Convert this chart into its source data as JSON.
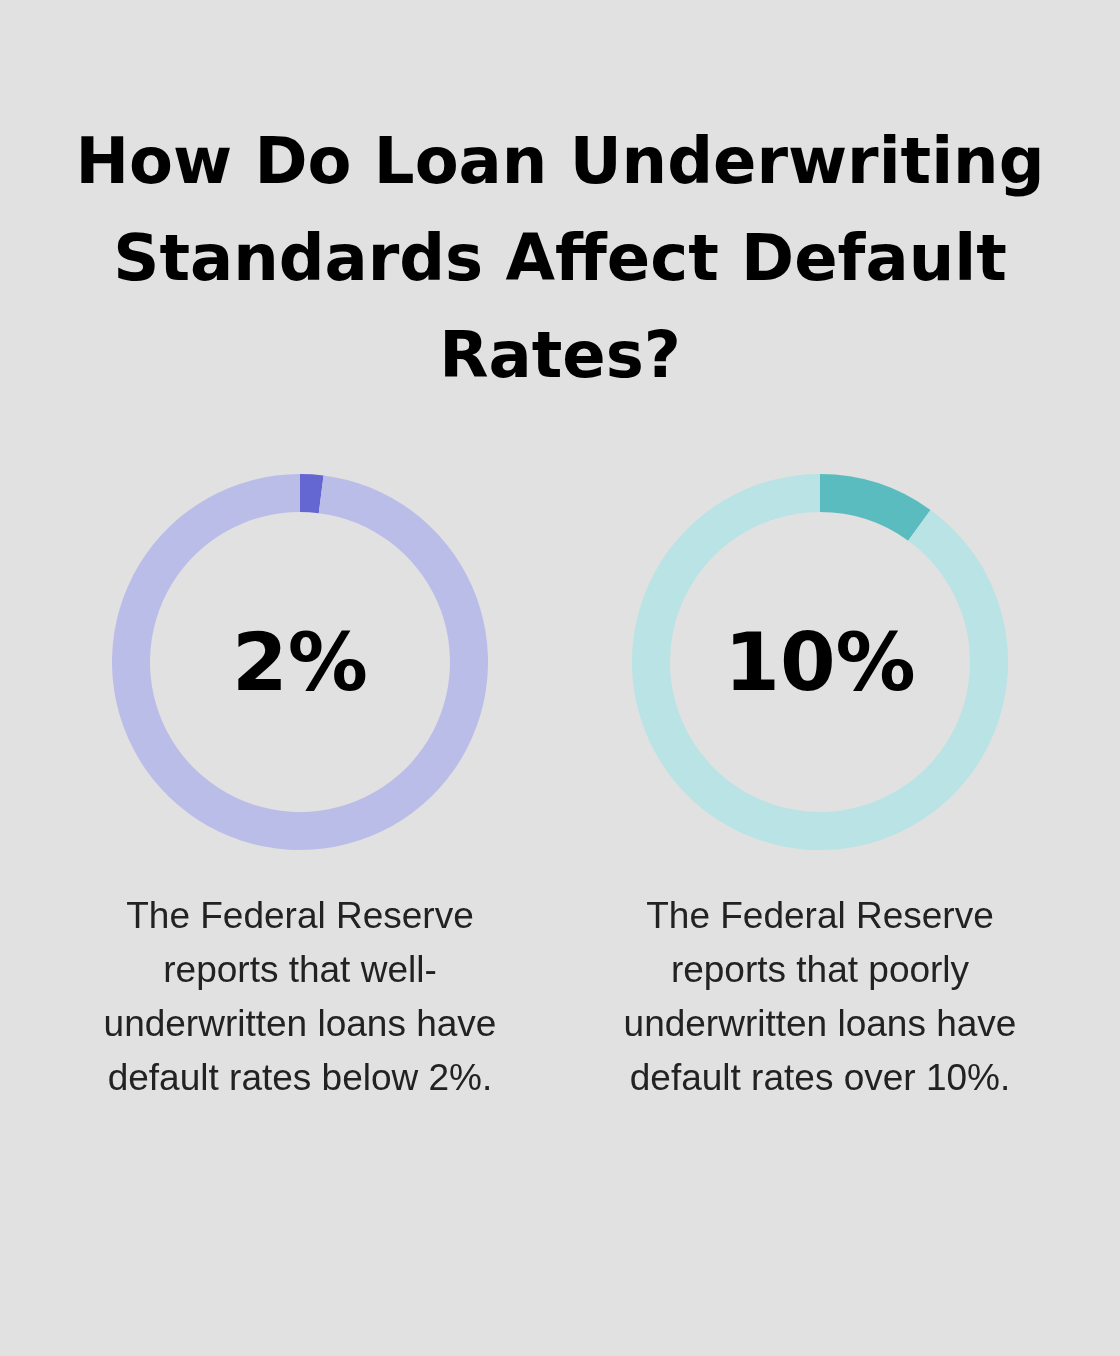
{
  "chart_data": [
    {
      "type": "donut",
      "title": "How Do Loan Underwriting Standards Affect Default Rates?",
      "categories": [
        null,
        null
      ],
      "values": [
        2,
        98
      ],
      "colors": [
        "#6466d1",
        "#bbbde9"
      ],
      "annotations": [
        "2%",
        "The Federal Reserve reports that well-underwritten loans have default rates below 2%."
      ]
    },
    {
      "type": "donut",
      "categories": [
        null,
        null
      ],
      "values": [
        10,
        90
      ],
      "colors": [
        "#5bbcbf",
        "#b9e3e4"
      ],
      "annotations": [
        "10%",
        "The Federal Reserve reports that poorly underwritten loans have default rates over 10%."
      ]
    }
  ]
}
